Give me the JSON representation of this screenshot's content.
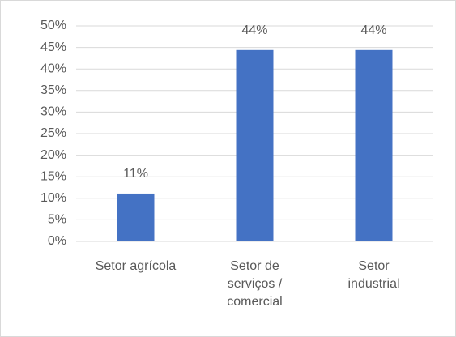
{
  "chart_data": {
    "type": "bar",
    "categories": [
      "Setor agrícola",
      "Setor de serviços / comercial",
      "Setor industrial"
    ],
    "values": [
      11.1,
      44.4,
      44.4
    ],
    "value_labels": [
      "11%",
      "44%",
      "44%"
    ],
    "color": "#4472c4",
    "ylim": [
      0,
      50
    ],
    "yticks": [
      {
        "value": 0,
        "label": "0%"
      },
      {
        "value": 5,
        "label": "5%"
      },
      {
        "value": 10,
        "label": "10%"
      },
      {
        "value": 15,
        "label": "15%"
      },
      {
        "value": 20,
        "label": "20%"
      },
      {
        "value": 25,
        "label": "25%"
      },
      {
        "value": 30,
        "label": "30%"
      },
      {
        "value": 35,
        "label": "35%"
      },
      {
        "value": 40,
        "label": "40%"
      },
      {
        "value": 45,
        "label": "45%"
      },
      {
        "value": 50,
        "label": "50%"
      }
    ],
    "grid": true
  }
}
